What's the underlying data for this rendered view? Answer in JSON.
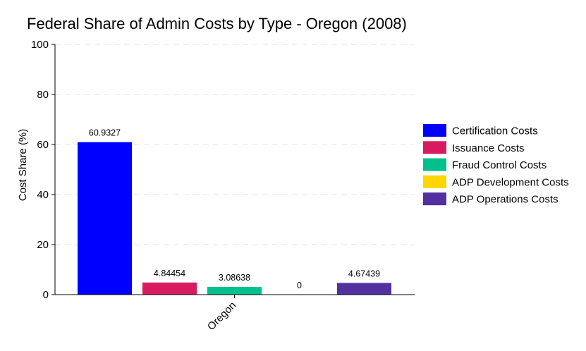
{
  "chart_data": {
    "type": "bar",
    "title": "Federal Share of Admin Costs by Type - Oregon (2008)",
    "xlabel": "",
    "ylabel": "Cost Share (%)",
    "categories": [
      "Oregon"
    ],
    "ylim": [
      0,
      100
    ],
    "yticks": [
      0,
      20,
      40,
      60,
      80,
      100
    ],
    "grid": true,
    "legend_position": "right",
    "series": [
      {
        "name": "Certification Costs",
        "values": [
          60.9327
        ],
        "label": "60.9327",
        "color": "#0000ff"
      },
      {
        "name": "Issuance Costs",
        "values": [
          4.84454
        ],
        "label": "4.84454",
        "color": "#d81b60"
      },
      {
        "name": "Fraud Control Costs",
        "values": [
          3.08638
        ],
        "label": "3.08638",
        "color": "#00c08b"
      },
      {
        "name": "ADP Development Costs",
        "values": [
          0
        ],
        "label": "0",
        "color": "#ffd600"
      },
      {
        "name": "ADP Operations Costs",
        "values": [
          4.67439
        ],
        "label": "4.67439",
        "color": "#5330a0"
      }
    ]
  }
}
